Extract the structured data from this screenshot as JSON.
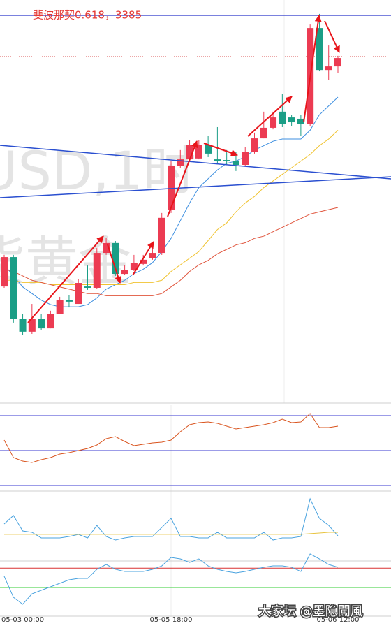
{
  "chart_data": [
    {
      "type": "candlestick",
      "annotation": "斐波那契0.618，3385",
      "watermark": [
        "USD,1时",
        "货黄金"
      ],
      "categories": [
        null,
        null,
        "05-03 00:00",
        null,
        null,
        null,
        null,
        null,
        null,
        null,
        null,
        null,
        null,
        null,
        null,
        null,
        null,
        null,
        "05-05 18:00",
        null,
        null,
        null,
        null,
        null,
        null,
        null,
        null,
        null,
        null,
        null,
        null,
        null,
        null,
        null,
        null,
        null,
        "05-06 12:00"
      ],
      "open": [
        3262.2,
        3275.5,
        3247.4,
        3241.7,
        3247.4,
        3243.2,
        3249.6,
        3255.9,
        3254.3,
        3262.2,
        3261.6,
        3277.4,
        3281.9,
        3267.9,
        3269.8,
        3272.4,
        3274.9,
        3277.4,
        3297.0,
        3316.7,
        3319.8,
        3320.2,
        3326.2,
        3319.8,
        3319.5,
        3319.2,
        3317.3,
        3323.3,
        3329.3,
        3334.1,
        3341.4,
        3338.8,
        3338.2,
        3335.7,
        3379.3,
        3360.3,
        3361.9
      ],
      "high": [
        3276.5,
        3276.5,
        3249.6,
        3254.3,
        3249.6,
        3251.2,
        3257.5,
        3258.4,
        3265.4,
        3271.7,
        3279.6,
        3284.4,
        3282.8,
        3271.7,
        3276.5,
        3276.5,
        3279.6,
        3295.5,
        3319.2,
        3324.0,
        3328.7,
        3328.7,
        3330.3,
        3334.4,
        3324.0,
        3323.0,
        3325.5,
        3331.9,
        3341.4,
        3341.4,
        3349.3,
        3339.8,
        3339.8,
        3380.9,
        3385.7,
        3371.4,
        3366.7
      ],
      "low": [
        3261.6,
        3245.8,
        3240.1,
        3240.7,
        3242.3,
        3243.2,
        3249.6,
        3252.7,
        3254.3,
        3260.7,
        3261.0,
        3276.5,
        3267.0,
        3267.6,
        3269.2,
        3271.7,
        3274.3,
        3276.5,
        3295.5,
        3316.0,
        3318.6,
        3319.8,
        3320.8,
        3317.6,
        3317.6,
        3314.5,
        3316.7,
        3322.4,
        3329.3,
        3333.4,
        3334.4,
        3335.0,
        3330.3,
        3335.0,
        3359.7,
        3355.6,
        3358.8
      ],
      "close": [
        3275.5,
        3247.4,
        3241.7,
        3247.4,
        3243.2,
        3249.6,
        3255.9,
        3255.3,
        3263.8,
        3261.6,
        3277.4,
        3281.9,
        3267.9,
        3269.8,
        3272.7,
        3274.3,
        3277.4,
        3293.3,
        3316.7,
        3319.8,
        3326.2,
        3326.2,
        3322.4,
        3319.2,
        3319.2,
        3317.3,
        3323.3,
        3329.3,
        3334.1,
        3338.8,
        3335.7,
        3336.6,
        3335.7,
        3379.3,
        3360.3,
        3361.9,
        3365.7
      ],
      "up_color": "#ec3b52",
      "down_color": "#1a9e86",
      "series": [
        {
          "color": "#3d8fe0",
          "values": [
            3272,
            3267,
            3262,
            3259,
            3256,
            3254,
            3253,
            3253,
            3253,
            3254,
            3257,
            3261,
            3263,
            3265,
            3268,
            3270,
            3273,
            3278,
            3284,
            3292,
            3300,
            3307,
            3311,
            3315,
            3318,
            3319,
            3321,
            3324,
            3326,
            3328,
            3329,
            3329,
            3329,
            3333,
            3340,
            3344,
            3348
          ]
        },
        {
          "color": "#f0c330",
          "values": [
            3265,
            3265,
            3264,
            3264,
            3264,
            3263,
            3263,
            3263,
            3263,
            3263,
            3263,
            3263,
            3263,
            3263,
            3264,
            3264,
            3264,
            3265,
            3269,
            3272,
            3275,
            3278,
            3283,
            3288,
            3291,
            3296,
            3300,
            3303,
            3307,
            3310,
            3313,
            3316,
            3319,
            3322,
            3326,
            3329,
            3333
          ]
        },
        {
          "color": "#e0553d",
          "values": [
            3270,
            3269,
            3267,
            3265,
            3264,
            3263,
            3262,
            3261,
            3260,
            3259,
            3259,
            3258,
            3258,
            3258,
            3258,
            3258,
            3258,
            3259,
            3262,
            3265,
            3269,
            3272,
            3274,
            3277,
            3279,
            3281,
            3282,
            3284,
            3285,
            3287,
            3289,
            3291,
            3293,
            3295,
            3296,
            3297,
            3298
          ]
        }
      ],
      "hlines": [
        {
          "value": 3385,
          "color": "#2b36c9"
        },
        {
          "value": 3366.4,
          "color": "#e07070"
        }
      ],
      "ylim": [
        3210,
        3392
      ]
    },
    {
      "type": "line",
      "ylim": [
        17,
        89
      ],
      "levels": [
        {
          "value": 80,
          "color": "#3a3ad0"
        },
        {
          "value": 50,
          "color": "#3a3ad0"
        },
        {
          "value": 20,
          "color": "#3a3ad0"
        }
      ],
      "series": [
        {
          "color": "#d9541e",
          "values": [
            59,
            44,
            41,
            39.8,
            42.2,
            44,
            47,
            48.2,
            50,
            51.8,
            54.8,
            60.2,
            62,
            57.8,
            54.2,
            55.4,
            56.6,
            57.2,
            59,
            66.2,
            72.2,
            74,
            74.6,
            73.4,
            71,
            68.6,
            69.8,
            71,
            72.2,
            74,
            77,
            74,
            74.6,
            81.8,
            69.8,
            69.8,
            71
          ]
        }
      ]
    },
    {
      "type": "line",
      "ylim": [
        0,
        100
      ],
      "levels": [],
      "series": [
        {
          "color": "#4aa3df",
          "values": [
            52.6,
            65.3,
            42.1,
            40,
            31.6,
            31.6,
            31.6,
            33.7,
            36.8,
            31.6,
            50.5,
            33.7,
            28.4,
            31.6,
            33.7,
            33.7,
            33.7,
            47.4,
            61.1,
            33.7,
            33.7,
            31.6,
            31.6,
            40,
            31.6,
            31.6,
            31.6,
            31.6,
            40,
            28.4,
            31.6,
            31.6,
            33.7,
            90.5,
            61.1,
            50.5,
            34.7
          ]
        },
        {
          "color": "#e8c440",
          "values": [
            37,
            37,
            37,
            37,
            37,
            37,
            37,
            37,
            37,
            37,
            37,
            37,
            37,
            37,
            37,
            37,
            37,
            37,
            37,
            37,
            37,
            37,
            37,
            37,
            37,
            37,
            37,
            37,
            37,
            37,
            37,
            37,
            37,
            38,
            39,
            40,
            40
          ]
        }
      ]
    },
    {
      "type": "line",
      "ylim": [
        8,
        105
      ],
      "levels": [
        {
          "value": 80,
          "color": "#d93030"
        },
        {
          "value": 50,
          "color": "#33cc33"
        }
      ],
      "series": [
        {
          "color": "#4aa3df",
          "values": [
            67.3,
            34.9,
            24.2,
            40.3,
            45.7,
            51.1,
            56.5,
            61.9,
            64,
            64,
            78.1,
            85.6,
            78.1,
            74.8,
            74.8,
            74.8,
            78.1,
            83.4,
            96.4,
            94.2,
            88.8,
            94.2,
            83.4,
            78.1,
            74.8,
            72.7,
            74.8,
            78.1,
            81.3,
            83.4,
            83.4,
            81.3,
            74.8,
            101.8,
            94.2,
            85.6,
            81.3
          ]
        }
      ]
    }
  ],
  "credit": "大家坛 @墨隐闖風"
}
